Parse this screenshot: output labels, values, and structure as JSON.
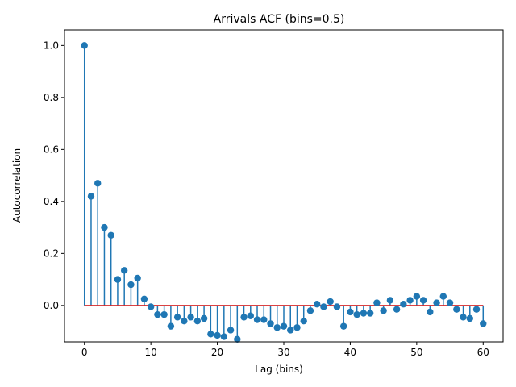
{
  "chart_data": {
    "type": "stem",
    "title": "Arrivals ACF (bins=0.5)",
    "xlabel": "Lag (bins)",
    "ylabel": "Autocorrelation",
    "xlim": [
      -3,
      63
    ],
    "ylim": [
      -0.14,
      1.06
    ],
    "xticks": [
      0,
      10,
      20,
      30,
      40,
      50,
      60
    ],
    "yticks": [
      0.0,
      0.2,
      0.4,
      0.6,
      0.8,
      1.0
    ],
    "xtick_labels": [
      "0",
      "10",
      "20",
      "30",
      "40",
      "50",
      "60"
    ],
    "ytick_labels": [
      "0.0",
      "0.2",
      "0.4",
      "0.6",
      "0.8",
      "1.0"
    ],
    "baseline": 0,
    "grid": false,
    "colors": {
      "stem": "#1f77b4",
      "baseline": "#d62728"
    },
    "x": [
      0,
      1,
      2,
      3,
      4,
      5,
      6,
      7,
      8,
      9,
      10,
      11,
      12,
      13,
      14,
      15,
      16,
      17,
      18,
      19,
      20,
      21,
      22,
      23,
      24,
      25,
      26,
      27,
      28,
      29,
      30,
      31,
      32,
      33,
      34,
      35,
      36,
      37,
      38,
      39,
      40,
      41,
      42,
      43,
      44,
      45,
      46,
      47,
      48,
      49,
      50,
      51,
      52,
      53,
      54,
      55,
      56,
      57,
      58,
      59,
      60
    ],
    "values": [
      1.0,
      0.42,
      0.47,
      0.3,
      0.27,
      0.1,
      0.135,
      0.08,
      0.105,
      0.025,
      -0.005,
      -0.035,
      -0.035,
      -0.08,
      -0.045,
      -0.06,
      -0.045,
      -0.06,
      -0.05,
      -0.11,
      -0.115,
      -0.12,
      -0.095,
      -0.13,
      -0.045,
      -0.04,
      -0.055,
      -0.055,
      -0.07,
      -0.085,
      -0.08,
      -0.095,
      -0.085,
      -0.06,
      -0.02,
      0.005,
      -0.005,
      0.015,
      -0.005,
      -0.08,
      -0.025,
      -0.035,
      -0.03,
      -0.03,
      0.01,
      -0.02,
      0.02,
      -0.015,
      0.005,
      0.02,
      0.035,
      0.02,
      -0.025,
      0.01,
      0.035,
      0.01,
      -0.015,
      -0.045,
      -0.05,
      -0.015,
      -0.07
    ]
  }
}
